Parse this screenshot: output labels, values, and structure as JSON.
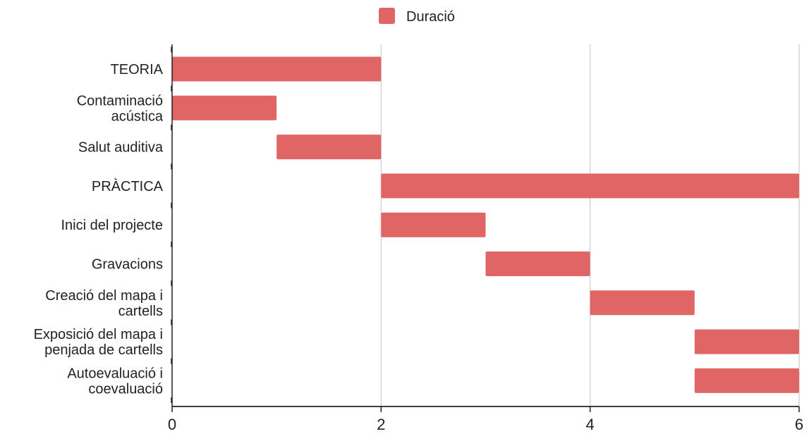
{
  "chart_data": {
    "type": "bar",
    "orientation": "horizontal",
    "stacked_gantt": true,
    "categories": [
      "TEORIA",
      "Contaminació acústica",
      "Salut auditiva",
      "PRÀCTICA",
      "Inici del projecte",
      "Gravacions",
      "Creació del mapa i cartells",
      "Exposició del mapa i penjada de cartells",
      "Autoevaluació i coevaluació"
    ],
    "category_lines": [
      [
        "TEORIA"
      ],
      [
        "Contaminació",
        "acústica"
      ],
      [
        "Salut auditiva"
      ],
      [
        "PRÀCTICA"
      ],
      [
        "Inici del projecte"
      ],
      [
        "Gravacions"
      ],
      [
        "Creació del mapa i",
        "cartells"
      ],
      [
        "Exposició del mapa i",
        "penjada de cartells"
      ],
      [
        "Autoevaluació i",
        "coevaluació"
      ]
    ],
    "start": [
      0,
      0,
      1,
      2,
      2,
      3,
      4,
      5,
      5
    ],
    "series": [
      {
        "name": "Duració",
        "values": [
          2,
          1,
          1,
          4,
          1,
          1,
          1,
          1,
          1
        ],
        "color": "#e06666"
      }
    ],
    "xlim": [
      0,
      6
    ],
    "xticks": [
      "0",
      "2",
      "4",
      "6"
    ],
    "legend_position": "top",
    "grid": "vertical",
    "xlabel": "",
    "ylabel": "",
    "title": ""
  }
}
